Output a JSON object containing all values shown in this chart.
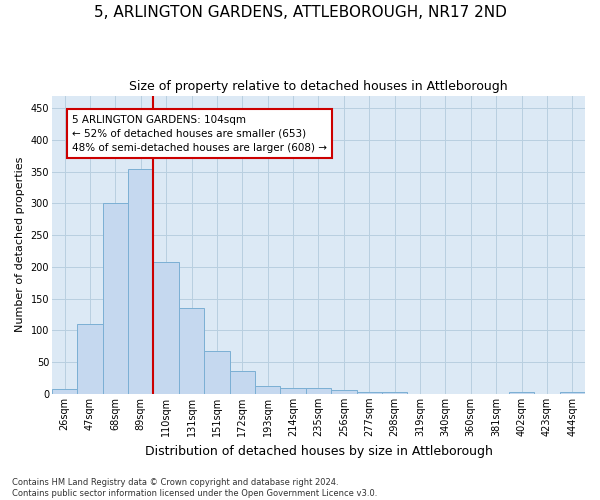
{
  "title1": "5, ARLINGTON GARDENS, ATTLEBOROUGH, NR17 2ND",
  "title2": "Size of property relative to detached houses in Attleborough",
  "xlabel": "Distribution of detached houses by size in Attleborough",
  "ylabel": "Number of detached properties",
  "categories": [
    "26sqm",
    "47sqm",
    "68sqm",
    "89sqm",
    "110sqm",
    "131sqm",
    "151sqm",
    "172sqm",
    "193sqm",
    "214sqm",
    "235sqm",
    "256sqm",
    "277sqm",
    "298sqm",
    "319sqm",
    "340sqm",
    "360sqm",
    "381sqm",
    "402sqm",
    "423sqm",
    "444sqm"
  ],
  "values": [
    8,
    110,
    300,
    355,
    208,
    135,
    68,
    36,
    13,
    10,
    9,
    6,
    3,
    3,
    0,
    0,
    0,
    0,
    3,
    0,
    3
  ],
  "bar_color": "#c5d8ef",
  "bar_edge_color": "#7bafd4",
  "bar_width": 1.0,
  "vline_index": 4,
  "vline_color": "#cc0000",
  "annotation_line1": "5 ARLINGTON GARDENS: 104sqm",
  "annotation_line2": "← 52% of detached houses are smaller (653)",
  "annotation_line3": "48% of semi-detached houses are larger (608) →",
  "annotation_box_facecolor": "#ffffff",
  "annotation_box_edgecolor": "#cc0000",
  "ylim": [
    0,
    470
  ],
  "yticks": [
    0,
    50,
    100,
    150,
    200,
    250,
    300,
    350,
    400,
    450
  ],
  "ax_facecolor": "#dce9f5",
  "grid_color": "#b8cfe0",
  "title1_fontsize": 11,
  "title2_fontsize": 9,
  "ylabel_fontsize": 8,
  "xlabel_fontsize": 9,
  "tick_fontsize": 7,
  "footer": "Contains HM Land Registry data © Crown copyright and database right 2024.\nContains public sector information licensed under the Open Government Licence v3.0."
}
